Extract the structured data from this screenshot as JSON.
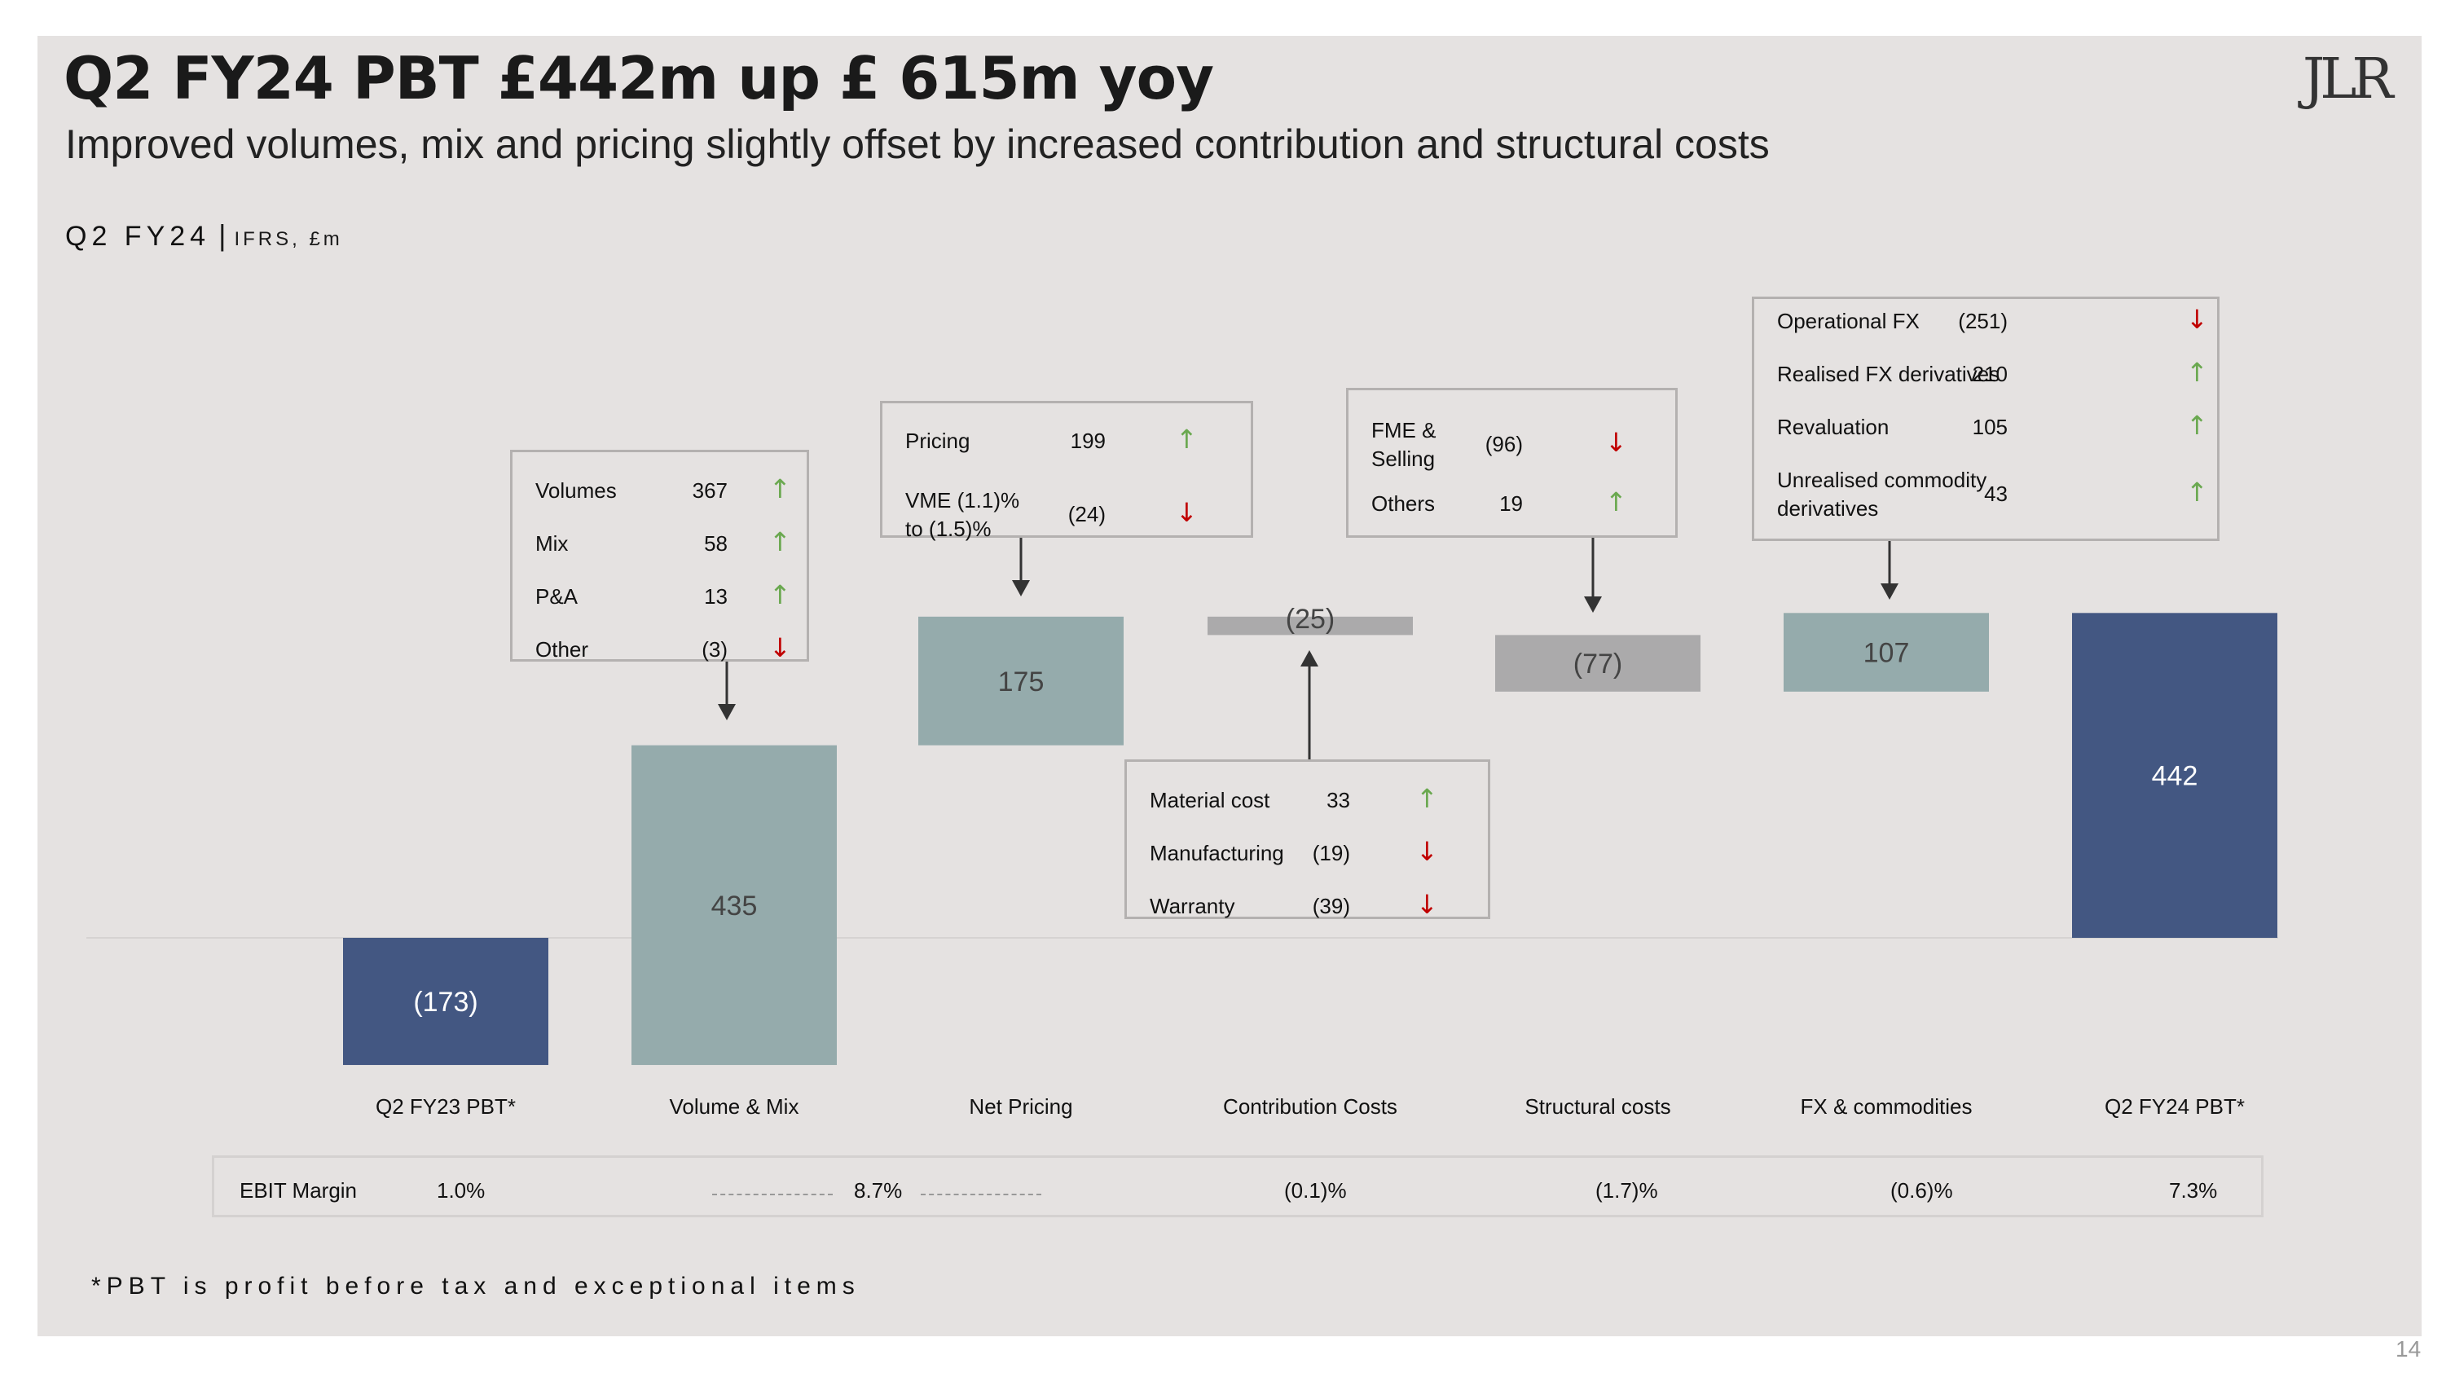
{
  "header": {
    "title": "Q2 FY24 PBT £442m up £ 615m yoy",
    "subtitle": "Improved volumes, mix and pricing slightly offset by increased contribution and structural costs",
    "period": "Q2 FY24",
    "separator": "|",
    "basis": "IFRS, £m",
    "logo_text": "JLR"
  },
  "colors": {
    "total_bar": "#435782",
    "positive_bar": "#95abac",
    "negative_bar": "#abaaab",
    "up_arrow": "#6aa84f",
    "down_arrow": "#c00000",
    "background": "#e5e2e1"
  },
  "chart_data": {
    "type": "waterfall",
    "title": "Q2 FY24 PBT £442m up £ 615m yoy",
    "unit": "£m",
    "categories": [
      "Q2 FY23 PBT*",
      "Volume & Mix",
      "Net Pricing",
      "Contribution Costs",
      "Structural costs",
      "FX & commodities",
      "Q2 FY24 PBT*"
    ],
    "values": [
      -173,
      435,
      175,
      -25,
      -77,
      107,
      442
    ],
    "value_labels": [
      "(173)",
      "435",
      "175",
      "(25)",
      "(77)",
      "107",
      "442"
    ],
    "kinds": [
      "total",
      "delta",
      "delta",
      "delta",
      "delta",
      "delta",
      "total"
    ],
    "ylim": [
      -173,
      442
    ]
  },
  "callouts": [
    {
      "for": "Volume & Mix",
      "items": [
        {
          "label": "Volumes",
          "value": "367",
          "dir": "up",
          "icon": "up-arrow-icon"
        },
        {
          "label": "Mix",
          "value": "58",
          "dir": "up",
          "icon": "up-arrow-icon"
        },
        {
          "label": "P&A",
          "value": "13",
          "dir": "up",
          "icon": "up-arrow-icon"
        },
        {
          "label": "Other",
          "value": "(3)",
          "dir": "down",
          "icon": "down-arrow-icon"
        }
      ]
    },
    {
      "for": "Net Pricing",
      "items": [
        {
          "label": "Pricing",
          "value": "199",
          "dir": "up",
          "icon": "up-arrow-icon"
        },
        {
          "label": "VME (1.1)%\nto (1.5)%",
          "value": "(24)",
          "dir": "down",
          "icon": "down-arrow-icon"
        }
      ]
    },
    {
      "for": "Contribution Costs",
      "items": [
        {
          "label": "Material cost",
          "value": "33",
          "dir": "up",
          "icon": "up-arrow-icon"
        },
        {
          "label": "Manufacturing",
          "value": "(19)",
          "dir": "down",
          "icon": "down-arrow-icon"
        },
        {
          "label": "Warranty",
          "value": "(39)",
          "dir": "down",
          "icon": "down-arrow-icon"
        }
      ]
    },
    {
      "for": "Structural costs",
      "items": [
        {
          "label": "FME &\nSelling",
          "value": "(96)",
          "dir": "down",
          "icon": "down-arrow-icon"
        },
        {
          "label": "Others",
          "value": "19",
          "dir": "up",
          "icon": "up-arrow-icon"
        }
      ]
    },
    {
      "for": "FX & commodities",
      "items": [
        {
          "label": "Operational FX",
          "value": "(251)",
          "dir": "down",
          "icon": "down-arrow-icon"
        },
        {
          "label": "Realised FX derivatives",
          "value": "210",
          "dir": "up",
          "icon": "up-arrow-icon"
        },
        {
          "label": "Revaluation",
          "value": "105",
          "dir": "up",
          "icon": "up-arrow-icon"
        },
        {
          "label": "Unrealised commodity\nderivatives",
          "value": "43",
          "dir": "up",
          "icon": "up-arrow-icon"
        }
      ]
    }
  ],
  "ebit": {
    "label": "EBIT Margin",
    "values": [
      "1.0%",
      "8.7%",
      "(0.1)%",
      "(1.7)%",
      "(0.6)%",
      "7.3%"
    ]
  },
  "footnote": "*PBT is profit before tax and exceptional items",
  "page_number": "14"
}
